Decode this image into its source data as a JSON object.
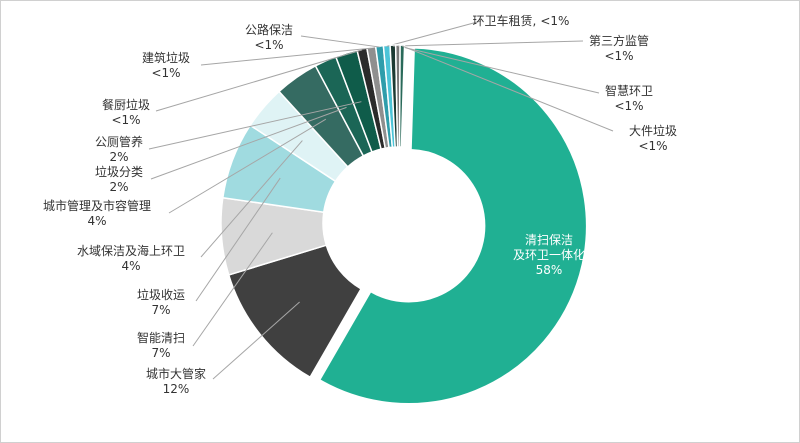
{
  "chart_data": {
    "type": "donut",
    "categories": [
      "清扫保洁\n及环卫一体化",
      "城市大管家",
      "智能清扫",
      "垃圾收运",
      "水域保洁及海上环卫",
      "城市管理及市容管理",
      "垃圾分类",
      "公厕管养",
      "餐厨垃圾",
      "建筑垃圾",
      "公路保洁",
      "环卫车租赁,",
      "第三方监管",
      "智慧环卫",
      "大件垃圾"
    ],
    "values": [
      58,
      12,
      7,
      7,
      4,
      4,
      2,
      2,
      0.9,
      0.8,
      0.7,
      0.6,
      0.5,
      0.4,
      0.4
    ],
    "value_labels": [
      "58%",
      "12%",
      "7%",
      "7%",
      "4%",
      "4%",
      "2%",
      "2%",
      "<1%",
      "<1%",
      "<1%",
      "<1%",
      "<1%",
      "<1%",
      "<1%"
    ],
    "colors": [
      "#20b093",
      "#404040",
      "#d9d9d9",
      "#a0dbe0",
      "#dff3f5",
      "#356b62",
      "#1b6656",
      "#0f5c4a",
      "#2b2b2b",
      "#8f8f8f",
      "#2f9dab",
      "#4cc4d8",
      "#1c3a33",
      "#7a7a7a",
      "#2a6a5a"
    ]
  }
}
